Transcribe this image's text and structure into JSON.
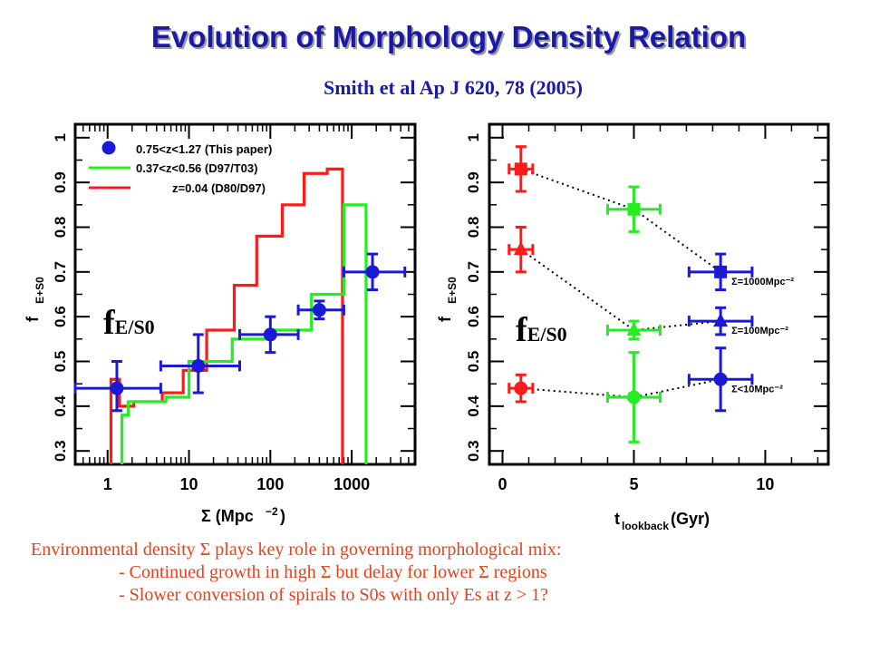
{
  "title": "Evolution of Morphology Density Relation",
  "subtitle": "Smith et al Ap J 620, 78 (2005)",
  "colors": {
    "title": "#1a1aa6",
    "caption": "#e8401a",
    "red": "#ff1a1a",
    "green": "#22ee22",
    "blue": "#1a1ad6"
  },
  "overlay_label": {
    "main": "f",
    "sub": "E/S0"
  },
  "caption": {
    "line1": "Environmental density Σ plays key role in governing morphological mix:",
    "line2": "- Continued growth in high Σ but delay for lower Σ regions",
    "line3": "- Slower conversion of spirals to S0s with only Es at z > 1?"
  },
  "chart_data": [
    {
      "type": "line",
      "xscale": "log",
      "xlabel": "Σ (Mpc⁻²)",
      "ylabel": "fE+S0",
      "xlim": [
        0.4,
        6000
      ],
      "ylim": [
        0.27,
        1.03
      ],
      "xticks": [
        1,
        10,
        100,
        1000
      ],
      "yticks": [
        0.3,
        0.4,
        0.5,
        0.6,
        0.7,
        0.8,
        0.9,
        1
      ],
      "legend_position": "top-left",
      "series": [
        {
          "name": "0.75<z<1.27 (This paper)",
          "kind": "points",
          "color": "#1a1ad6",
          "points": [
            {
              "x": 1.3,
              "y": 0.44,
              "xlo": 0.4,
              "xhi": 4.5,
              "ylo": 0.39,
              "yhi": 0.5
            },
            {
              "x": 13,
              "y": 0.49,
              "xlo": 4.5,
              "xhi": 42,
              "ylo": 0.43,
              "yhi": 0.56
            },
            {
              "x": 100,
              "y": 0.56,
              "xlo": 42,
              "xhi": 220,
              "ylo": 0.52,
              "yhi": 0.6
            },
            {
              "x": 400,
              "y": 0.615,
              "xlo": 220,
              "xhi": 800,
              "ylo": 0.595,
              "yhi": 0.635
            },
            {
              "x": 1800,
              "y": 0.7,
              "xlo": 800,
              "xhi": 4500,
              "ylo": 0.66,
              "yhi": 0.74
            }
          ]
        },
        {
          "name": "0.37<z<0.56 (D97/T03)",
          "kind": "step",
          "color": "#22ee22",
          "edges": [
            1.5,
            1.8,
            5.2,
            10,
            34,
            100,
            320,
            800,
            1500
          ],
          "values": [
            0.38,
            0.41,
            0.42,
            0.5,
            0.55,
            0.57,
            0.65,
            0.85
          ]
        },
        {
          "name": "z=0.04 (D80/D97)",
          "kind": "step",
          "color": "#ff1a1a",
          "edges": [
            1.1,
            1.4,
            2.1,
            4.7,
            8.5,
            16.5,
            36,
            68,
            140,
            260,
            500,
            770
          ],
          "values": [
            0.46,
            0.4,
            0.41,
            0.43,
            0.48,
            0.57,
            0.67,
            0.78,
            0.85,
            0.92,
            0.93
          ]
        }
      ]
    },
    {
      "type": "scatter",
      "xlabel": "tlookback(Gyr)",
      "ylabel": "fE+S0",
      "xlim": [
        -0.5,
        12.4
      ],
      "ylim": [
        0.27,
        1.03
      ],
      "xticks": [
        0,
        5,
        10
      ],
      "yticks": [
        0.3,
        0.4,
        0.5,
        0.6,
        0.7,
        0.8,
        0.9,
        1
      ],
      "series": [
        {
          "name": "Σ=1000Mpc⁻²",
          "marker": "square",
          "points": [
            {
              "x": 0.7,
              "y": 0.93,
              "xerr": 0.45,
              "yerr": 0.05,
              "color": "#ff1a1a"
            },
            {
              "x": 5.0,
              "y": 0.84,
              "xerr": 1.0,
              "yerr": 0.05,
              "color": "#22ee22"
            },
            {
              "x": 8.3,
              "y": 0.7,
              "xerr": 1.2,
              "yerr": 0.04,
              "color": "#1a1ad6"
            }
          ]
        },
        {
          "name": "Σ=100Mpc⁻²",
          "marker": "triangle",
          "points": [
            {
              "x": 0.7,
              "y": 0.75,
              "xerr": 0.45,
              "yerr": 0.05,
              "color": "#ff1a1a"
            },
            {
              "x": 5.0,
              "y": 0.57,
              "xerr": 1.0,
              "yerr": 0.02,
              "color": "#22ee22"
            },
            {
              "x": 8.3,
              "y": 0.59,
              "xerr": 1.2,
              "yerr": 0.03,
              "color": "#1a1ad6"
            }
          ]
        },
        {
          "name": "Σ<10Mpc⁻²",
          "marker": "circle",
          "points": [
            {
              "x": 0.7,
              "y": 0.44,
              "xerr": 0.45,
              "yerr": 0.03,
              "color": "#ff1a1a"
            },
            {
              "x": 5.0,
              "y": 0.42,
              "xerr": 1.0,
              "yerr": 0.1,
              "color": "#22ee22"
            },
            {
              "x": 8.3,
              "y": 0.46,
              "xerr": 1.2,
              "yerr": 0.07,
              "color": "#1a1ad6"
            }
          ]
        }
      ]
    }
  ]
}
